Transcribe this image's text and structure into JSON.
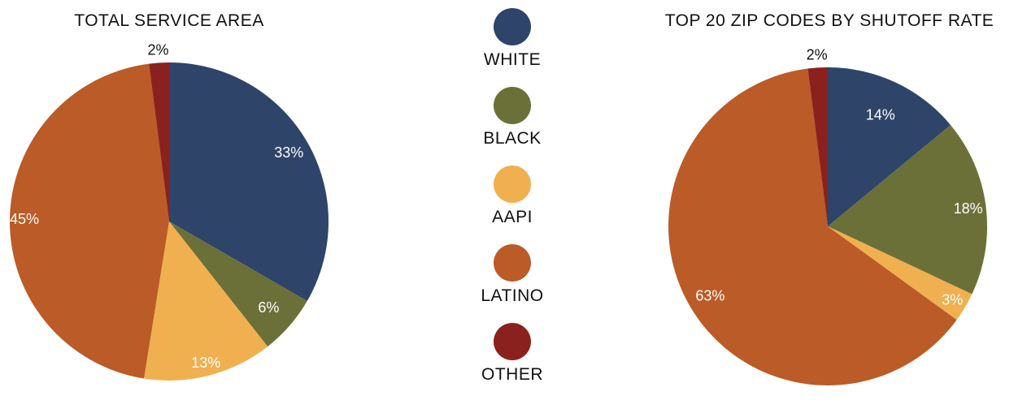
{
  "chart_data": [
    {
      "type": "pie",
      "title": "TOTAL SERVICE AREA",
      "categories": [
        "WHITE",
        "BLACK",
        "AAPI",
        "LATINO",
        "OTHER"
      ],
      "values": [
        33,
        6,
        13,
        45,
        2
      ],
      "labels": [
        "33%",
        "6%",
        "13%",
        "45%",
        "2%"
      ],
      "colors": [
        "#2e4469",
        "#6b7039",
        "#f0b04f",
        "#bb5b27",
        "#8b211e"
      ]
    },
    {
      "type": "pie",
      "title": "TOP 20 ZIP CODES BY SHUTOFF RATE",
      "categories": [
        "WHITE",
        "BLACK",
        "AAPI",
        "LATINO",
        "OTHER"
      ],
      "values": [
        14,
        18,
        3,
        63,
        2
      ],
      "labels": [
        "14%",
        "18%",
        "3%",
        "63%",
        "2%"
      ],
      "colors": [
        "#2e4469",
        "#6b7039",
        "#f0b04f",
        "#bb5b27",
        "#8b211e"
      ]
    }
  ],
  "legend": [
    {
      "label": "WHITE",
      "color": "#2e4469"
    },
    {
      "label": "BLACK",
      "color": "#6b7039"
    },
    {
      "label": "AAPI",
      "color": "#f0b04f"
    },
    {
      "label": "LATINO",
      "color": "#bb5b27"
    },
    {
      "label": "OTHER",
      "color": "#8b211e"
    }
  ]
}
